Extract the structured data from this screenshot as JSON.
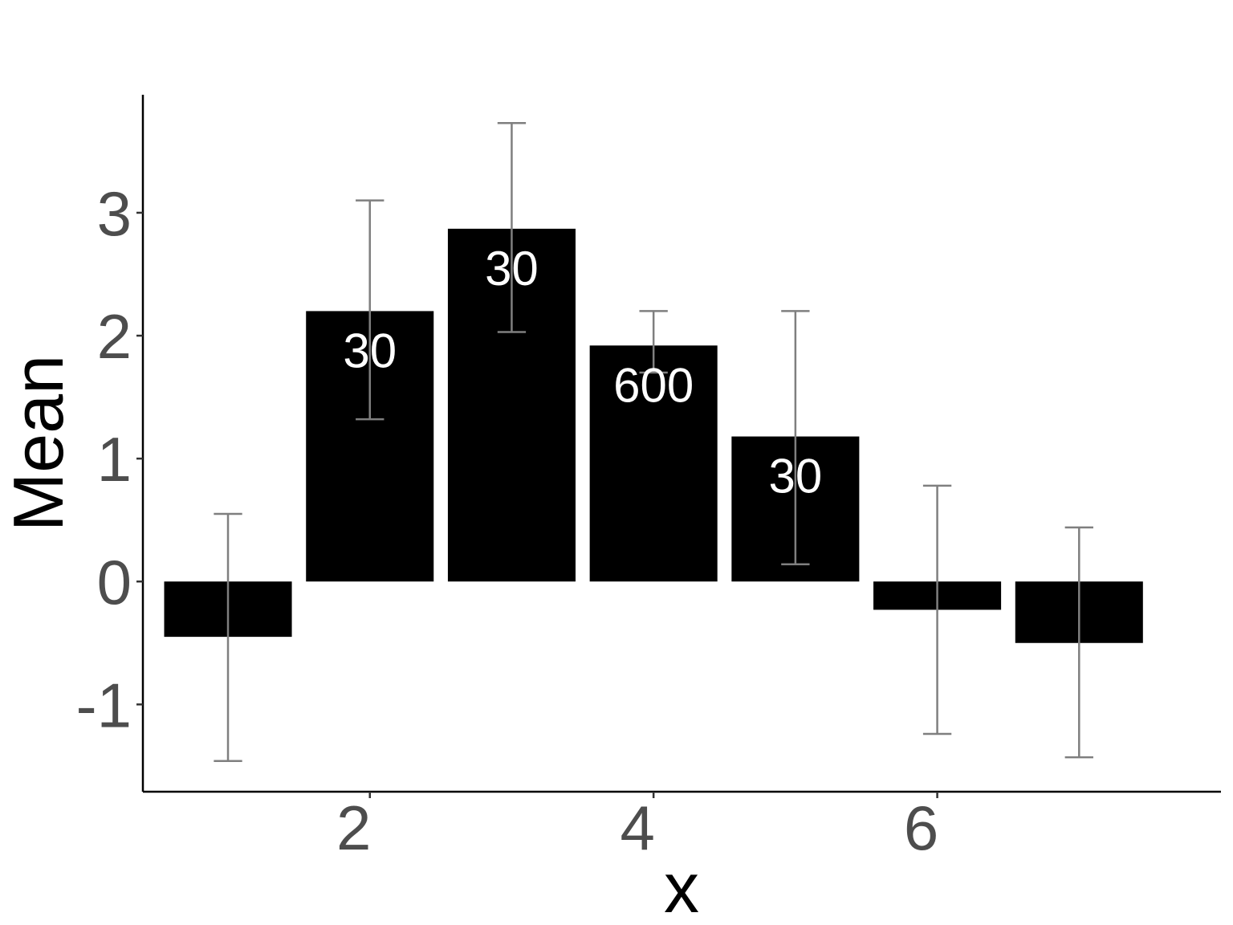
{
  "chart_data": {
    "type": "bar",
    "title": "",
    "xlabel": "x",
    "ylabel": "Mean",
    "x": [
      1,
      2,
      3,
      4,
      5,
      6,
      7
    ],
    "values": [
      -0.45,
      2.2,
      2.87,
      1.92,
      1.18,
      -0.23,
      -0.5
    ],
    "error_low": [
      -1.46,
      1.32,
      2.03,
      1.7,
      0.14,
      -1.24,
      -1.43
    ],
    "error_high": [
      0.55,
      3.1,
      3.73,
      2.2,
      2.2,
      0.78,
      0.44
    ],
    "bar_labels": [
      "",
      "30",
      "30",
      "600",
      "30",
      "",
      ""
    ],
    "xlim": [
      0.4,
      8.0
    ],
    "ylim": [
      -1.71,
      3.96
    ],
    "xticks": [
      2,
      4,
      6
    ],
    "xtick_labels": [
      "2",
      "4",
      "6"
    ],
    "yticks": [
      -1,
      0,
      1,
      2,
      3
    ],
    "ytick_labels": [
      "-1",
      "0",
      "1",
      "2",
      "3"
    ],
    "grid": false,
    "legend": "none",
    "colors": {
      "bar": "#000000",
      "errorbar": "#7f7f7f",
      "bar_label": "#ffffff",
      "tick_label": "#4d4d4d"
    }
  }
}
